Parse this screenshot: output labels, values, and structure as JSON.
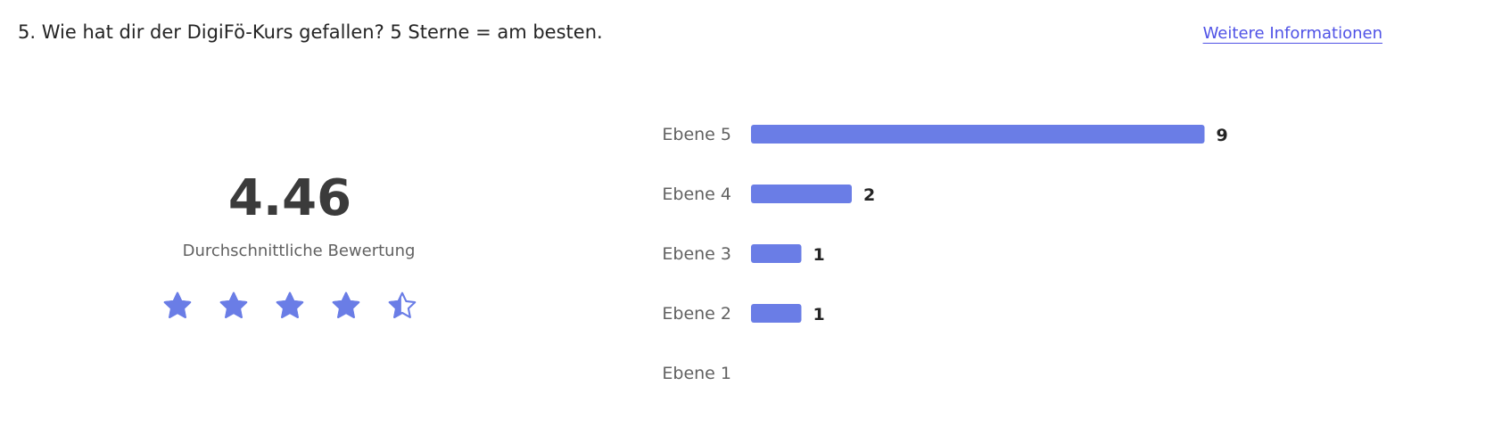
{
  "question": "5. Wie hat dir der DigiFö-Kurs gefallen? 5 Sterne = am besten.",
  "more_info_link": "Weitere Informationen",
  "average": {
    "value": "4.46",
    "label": "Durchschnittliche Bewertung",
    "stars_total": 5,
    "stars_filled": 4.46
  },
  "colors": {
    "accent": "#6a7de6",
    "link": "#4f52e6"
  },
  "chart_data": {
    "type": "bar",
    "orientation": "horizontal",
    "categories": [
      "Ebene 5",
      "Ebene 4",
      "Ebene 3",
      "Ebene 2",
      "Ebene 1"
    ],
    "values": [
      9,
      2,
      1,
      1,
      0
    ],
    "data_labels": [
      "9",
      "2",
      "1",
      "1",
      ""
    ],
    "grid": false
  }
}
